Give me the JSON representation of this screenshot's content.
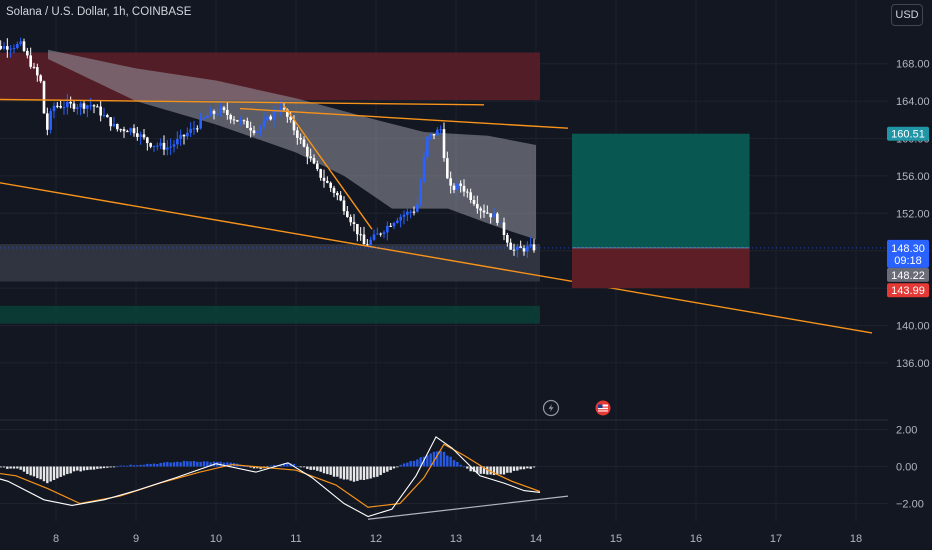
{
  "header": {
    "symbol_title": "Solana / U.S. Dollar, 1h, COINBASE",
    "currency_label": "USD"
  },
  "colors": {
    "background": "#131722",
    "up": "#2962ff",
    "down": "#ffffff",
    "trendline": "#f7931a",
    "resistance_zone": "#5a1e28",
    "support_zone": "#0b3d36",
    "target_zone": "#085750",
    "stop_zone": "#5d1f25"
  },
  "chart_data": [
    {
      "type": "candlestick",
      "title": "Solana / U.S. Dollar, 1h, COINBASE",
      "x_ticks": [
        "8",
        "9",
        "10",
        "11",
        "12",
        "13",
        "14",
        "15",
        "16",
        "17",
        "18"
      ],
      "y_ticks": [
        "136.00",
        "140.00",
        "144.00",
        "148.00",
        "152.00",
        "156.00",
        "160.00",
        "164.00",
        "168.00"
      ],
      "ylim": [
        133.5,
        171.5
      ],
      "price_path": [
        [
          7.1,
          169.6
        ],
        [
          7.6,
          170.0
        ],
        [
          7.85,
          166.0
        ],
        [
          7.92,
          160.5
        ],
        [
          8.0,
          163.5
        ],
        [
          8.5,
          163.6
        ],
        [
          8.8,
          161.0
        ],
        [
          9.0,
          161.0
        ],
        [
          9.2,
          159.5
        ],
        [
          9.45,
          159.0
        ],
        [
          9.75,
          161.0
        ],
        [
          9.95,
          162.5
        ],
        [
          10.1,
          163.0
        ],
        [
          10.3,
          162.0
        ],
        [
          10.55,
          160.8
        ],
        [
          10.85,
          163.5
        ],
        [
          11.05,
          160.5
        ],
        [
          11.3,
          156.5
        ],
        [
          11.55,
          154.0
        ],
        [
          11.75,
          151.0
        ],
        [
          11.9,
          148.5
        ],
        [
          12.1,
          150.0
        ],
        [
          12.3,
          151.5
        ],
        [
          12.55,
          152.5
        ],
        [
          12.68,
          160.0
        ],
        [
          12.85,
          161.0
        ],
        [
          12.95,
          154.5
        ],
        [
          13.1,
          155.0
        ],
        [
          13.35,
          152.5
        ],
        [
          13.55,
          151.5
        ],
        [
          13.75,
          148.0
        ],
        [
          13.95,
          148.3
        ]
      ],
      "ma_band_upper": [
        [
          7.9,
          169.5
        ],
        [
          9,
          167.5
        ],
        [
          10,
          166.2
        ],
        [
          11,
          164.3
        ],
        [
          12,
          162.0
        ],
        [
          12.6,
          160.7
        ],
        [
          13.4,
          160.3
        ],
        [
          14.0,
          159.3
        ]
      ],
      "ma_band_lower": [
        [
          7.9,
          168.5
        ],
        [
          9,
          164.0
        ],
        [
          10,
          161.5
        ],
        [
          11,
          158.5
        ],
        [
          11.6,
          156.0
        ],
        [
          12.2,
          152.5
        ],
        [
          12.9,
          152.5
        ],
        [
          13.5,
          150.6
        ],
        [
          14.0,
          149.2
        ]
      ],
      "trendlines": [
        {
          "from": [
            7.0,
            164.2
          ],
          "to": [
            13.35,
            163.6
          ]
        },
        {
          "from": [
            10.3,
            163.2
          ],
          "to": [
            14.4,
            161.1
          ]
        },
        {
          "from": [
            7.0,
            155.7
          ],
          "to": [
            18.2,
            139.2
          ]
        },
        {
          "from": [
            10.85,
            163.5
          ],
          "to": [
            11.95,
            150.3
          ]
        }
      ],
      "zones": [
        {
          "name": "resistance",
          "x": [
            7.0,
            14.05
          ],
          "y": [
            164.1,
            169.2
          ]
        },
        {
          "name": "support",
          "x": [
            7.0,
            14.05
          ],
          "y": [
            144.7,
            148.7
          ]
        },
        {
          "name": "demand",
          "x": [
            7.0,
            14.05
          ],
          "y": [
            140.2,
            142.1
          ]
        }
      ],
      "position": {
        "entry": 148.3,
        "target": 160.51,
        "stop": 143.99,
        "x": [
          14.45,
          16.67
        ]
      },
      "price_tags": {
        "target": "160.51",
        "last": "148.30",
        "countdown": "09:18",
        "close": "148.22",
        "stop": "143.99"
      }
    },
    {
      "type": "macd",
      "y_ticks": [
        "2.00",
        "0.00",
        "−2.00"
      ],
      "ylim": [
        -2.9,
        2.4
      ],
      "histogram_path": [
        [
          7.0,
          -0.05
        ],
        [
          7.5,
          -0.1
        ],
        [
          7.9,
          -0.9
        ],
        [
          8.2,
          -0.3
        ],
        [
          8.8,
          0.05
        ],
        [
          9.2,
          0.15
        ],
        [
          9.7,
          0.3
        ],
        [
          10.2,
          0.2
        ],
        [
          10.5,
          -0.15
        ],
        [
          10.9,
          0.2
        ],
        [
          11.3,
          -0.3
        ],
        [
          11.7,
          -0.8
        ],
        [
          12.0,
          -0.6
        ],
        [
          12.3,
          0.1
        ],
        [
          12.55,
          0.45
        ],
        [
          12.8,
          0.9
        ],
        [
          13.0,
          0.3
        ],
        [
          13.2,
          -0.3
        ],
        [
          13.5,
          -0.5
        ],
        [
          13.8,
          -0.2
        ],
        [
          14.0,
          -0.05
        ]
      ],
      "macd_line": [
        [
          7.0,
          -0.3
        ],
        [
          7.4,
          -0.8
        ],
        [
          7.85,
          -1.8
        ],
        [
          8.2,
          -2.1
        ],
        [
          8.6,
          -1.8
        ],
        [
          9.0,
          -1.3
        ],
        [
          9.5,
          -0.6
        ],
        [
          10.0,
          0.15
        ],
        [
          10.5,
          -0.3
        ],
        [
          10.9,
          0.2
        ],
        [
          11.2,
          -0.6
        ],
        [
          11.6,
          -2.0
        ],
        [
          11.9,
          -2.7
        ],
        [
          12.2,
          -2.3
        ],
        [
          12.5,
          -0.5
        ],
        [
          12.75,
          1.6
        ],
        [
          12.95,
          1.0
        ],
        [
          13.3,
          -0.5
        ],
        [
          13.6,
          -0.9
        ],
        [
          13.85,
          -1.3
        ],
        [
          14.05,
          -1.4
        ]
      ],
      "signal_line": [
        [
          7.0,
          -0.2
        ],
        [
          7.5,
          -0.5
        ],
        [
          7.9,
          -1.2
        ],
        [
          8.3,
          -2.0
        ],
        [
          8.8,
          -1.6
        ],
        [
          9.3,
          -0.9
        ],
        [
          9.8,
          -0.3
        ],
        [
          10.2,
          0.1
        ],
        [
          10.6,
          -0.05
        ],
        [
          11.0,
          -0.2
        ],
        [
          11.5,
          -1.0
        ],
        [
          11.9,
          -2.2
        ],
        [
          12.3,
          -2.0
        ],
        [
          12.6,
          -0.6
        ],
        [
          12.85,
          1.2
        ],
        [
          13.1,
          0.6
        ],
        [
          13.4,
          -0.2
        ],
        [
          13.7,
          -0.8
        ],
        [
          14.05,
          -1.35
        ]
      ],
      "divergence_line": {
        "from": [
          11.9,
          -2.85
        ],
        "to": [
          14.4,
          -1.6
        ]
      }
    }
  ]
}
